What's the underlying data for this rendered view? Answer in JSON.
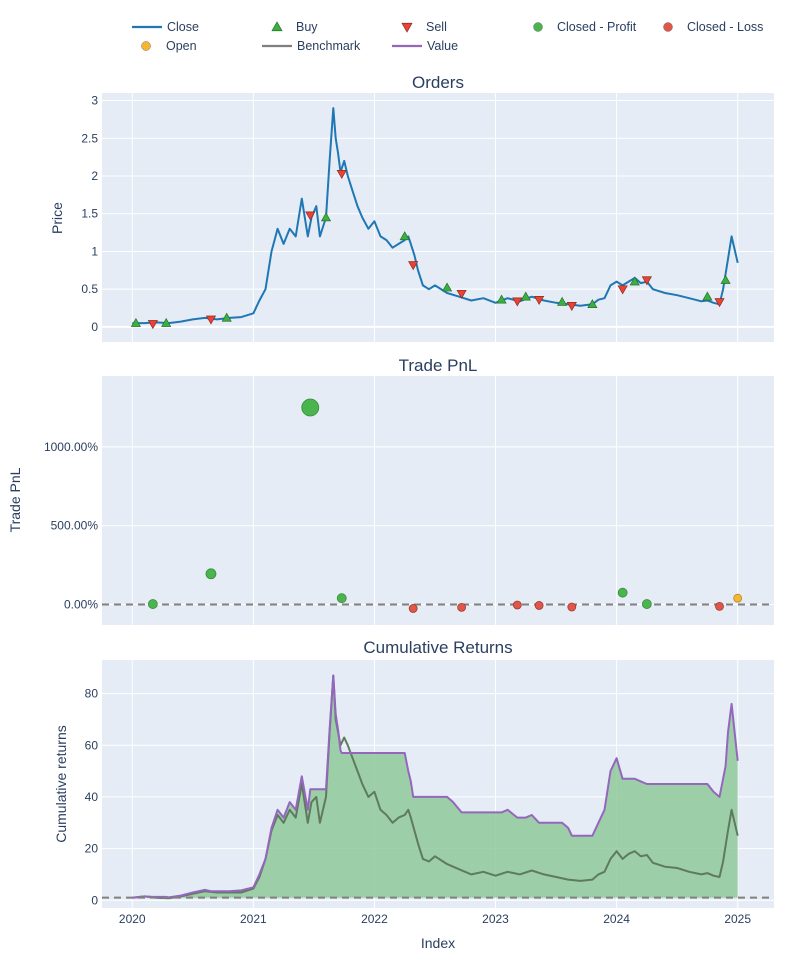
{
  "colors": {
    "close": "#1f77b4",
    "buy": "#37b13f",
    "sell": "#ea4335",
    "profit": "#4ab54e",
    "loss": "#e0574a",
    "open": "#f5b731",
    "benchmark": "#7f7f7f",
    "value": "#9467bd",
    "fill": "#8fc99a",
    "plot_bg": "#e5ecf6",
    "grid": "#ffffff",
    "text": "#2a3f5f"
  },
  "legend": {
    "items": [
      {
        "key": "close",
        "label": "Close",
        "symbol": "line",
        "color": "#1f77b4"
      },
      {
        "key": "buy",
        "label": "Buy",
        "symbol": "triangle-up",
        "color": "#37b13f"
      },
      {
        "key": "sell",
        "label": "Sell",
        "symbol": "triangle-down",
        "color": "#ea4335"
      },
      {
        "key": "profit",
        "label": "Closed - Profit",
        "symbol": "circle",
        "color": "#4ab54e"
      },
      {
        "key": "loss",
        "label": "Closed - Loss",
        "symbol": "circle",
        "color": "#e0574a"
      },
      {
        "key": "open",
        "label": "Open",
        "symbol": "circle",
        "color": "#f5b731"
      },
      {
        "key": "benchmark",
        "label": "Benchmark",
        "symbol": "line",
        "color": "#7f7f7f"
      },
      {
        "key": "value",
        "label": "Value",
        "symbol": "line",
        "color": "#9467bd"
      }
    ]
  },
  "chart_data": [
    {
      "type": "line",
      "title": "Orders",
      "xlabel": "",
      "ylabel": "Price",
      "xlim": [
        2019.75,
        2025.3
      ],
      "ylim": [
        -0.2,
        3.1
      ],
      "yticks": [
        0,
        0.5,
        1,
        1.5,
        2,
        2.5,
        3
      ],
      "ytick_labels": [
        "0",
        "0.5",
        "1",
        "1.5",
        "2",
        "2.5",
        "3"
      ],
      "xticks": [
        2020,
        2021,
        2022,
        2023,
        2024,
        2025
      ],
      "series": [
        {
          "name": "Close",
          "x": [
            2020.0,
            2020.1,
            2020.2,
            2020.3,
            2020.4,
            2020.5,
            2020.6,
            2020.7,
            2020.8,
            2020.9,
            2021.0,
            2021.05,
            2021.1,
            2021.15,
            2021.2,
            2021.25,
            2021.3,
            2021.35,
            2021.4,
            2021.45,
            2021.48,
            2021.52,
            2021.55,
            2021.6,
            2021.63,
            2021.66,
            2021.68,
            2021.7,
            2021.72,
            2021.75,
            2021.78,
            2021.82,
            2021.86,
            2021.9,
            2021.95,
            2022.0,
            2022.05,
            2022.1,
            2022.15,
            2022.2,
            2022.25,
            2022.28,
            2022.3,
            2022.33,
            2022.36,
            2022.4,
            2022.45,
            2022.5,
            2022.6,
            2022.7,
            2022.8,
            2022.9,
            2023.0,
            2023.1,
            2023.2,
            2023.3,
            2023.4,
            2023.5,
            2023.6,
            2023.7,
            2023.8,
            2023.85,
            2023.9,
            2023.95,
            2024.0,
            2024.05,
            2024.1,
            2024.15,
            2024.2,
            2024.25,
            2024.3,
            2024.4,
            2024.5,
            2024.6,
            2024.7,
            2024.75,
            2024.8,
            2024.85,
            2024.88,
            2024.92,
            2024.95,
            2025.0
          ],
          "y": [
            0.05,
            0.05,
            0.06,
            0.05,
            0.07,
            0.1,
            0.12,
            0.1,
            0.12,
            0.13,
            0.18,
            0.35,
            0.5,
            1.0,
            1.3,
            1.1,
            1.3,
            1.2,
            1.7,
            1.2,
            1.45,
            1.6,
            1.2,
            1.45,
            2.2,
            2.9,
            2.5,
            2.3,
            2.05,
            2.2,
            2.0,
            1.8,
            1.6,
            1.45,
            1.3,
            1.4,
            1.2,
            1.15,
            1.05,
            1.1,
            1.15,
            1.2,
            1.1,
            0.95,
            0.75,
            0.55,
            0.5,
            0.55,
            0.45,
            0.4,
            0.35,
            0.38,
            0.32,
            0.38,
            0.34,
            0.4,
            0.35,
            0.32,
            0.3,
            0.28,
            0.3,
            0.36,
            0.38,
            0.55,
            0.6,
            0.55,
            0.6,
            0.65,
            0.58,
            0.6,
            0.5,
            0.45,
            0.42,
            0.38,
            0.34,
            0.35,
            0.32,
            0.3,
            0.5,
            0.9,
            1.2,
            0.85
          ]
        }
      ],
      "buys": {
        "x": [
          2020.03,
          2020.28,
          2020.78,
          2021.6,
          2022.25,
          2022.6,
          2023.05,
          2023.25,
          2023.55,
          2023.8,
          2024.15,
          2024.75,
          2024.9
        ],
        "y": [
          0.05,
          0.05,
          0.12,
          1.45,
          1.2,
          0.52,
          0.36,
          0.4,
          0.33,
          0.3,
          0.6,
          0.4,
          0.62
        ]
      },
      "sells": {
        "x": [
          2020.17,
          2020.65,
          2021.47,
          2021.73,
          2022.32,
          2022.72,
          2023.18,
          2023.36,
          2023.63,
          2024.05,
          2024.25,
          2024.85
        ],
        "y": [
          0.04,
          0.1,
          1.48,
          2.03,
          0.82,
          0.44,
          0.34,
          0.36,
          0.28,
          0.5,
          0.62,
          0.33
        ]
      }
    },
    {
      "type": "scatter",
      "title": "Trade PnL",
      "xlabel": "",
      "ylabel": "Trade PnL",
      "xlim": [
        2019.75,
        2025.3
      ],
      "ylim": [
        -130,
        1450
      ],
      "yticks": [
        0,
        500,
        1000
      ],
      "ytick_labels": [
        "0.00%",
        "500.00%",
        "1000.00%"
      ],
      "xticks": [
        2020,
        2021,
        2022,
        2023,
        2024,
        2025
      ],
      "profit": {
        "x": [
          2020.17,
          2020.65,
          2021.47,
          2021.73,
          2024.05,
          2024.25
        ],
        "y": [
          3,
          195,
          1250,
          40,
          75,
          3
        ]
      },
      "loss": {
        "x": [
          2022.32,
          2022.72,
          2023.18,
          2023.36,
          2023.63,
          2024.85
        ],
        "y": [
          -25,
          -18,
          -3,
          -6,
          -16,
          -12
        ]
      },
      "open": {
        "x": [
          2025.0
        ],
        "y": [
          40
        ]
      },
      "profit_sizes": [
        8,
        9,
        16,
        8,
        8,
        8
      ],
      "reference_line": 0
    },
    {
      "type": "area",
      "title": "Cumulative Returns",
      "xlabel": "Index",
      "ylabel": "Cumulative returns",
      "xlim": [
        2019.75,
        2025.3
      ],
      "ylim": [
        -3,
        93
      ],
      "yticks": [
        0,
        20,
        40,
        60,
        80
      ],
      "ytick_labels": [
        "0",
        "20",
        "40",
        "60",
        "80"
      ],
      "xticks": [
        2020,
        2021,
        2022,
        2023,
        2024,
        2025
      ],
      "xtick_labels": [
        "2020",
        "2021",
        "2022",
        "2023",
        "2024",
        "2025"
      ],
      "series": [
        {
          "name": "Benchmark",
          "x": [
            2020.0,
            2020.1,
            2020.2,
            2020.3,
            2020.4,
            2020.5,
            2020.6,
            2020.7,
            2020.8,
            2020.9,
            2021.0,
            2021.05,
            2021.1,
            2021.15,
            2021.2,
            2021.25,
            2021.3,
            2021.35,
            2021.4,
            2021.45,
            2021.48,
            2021.52,
            2021.55,
            2021.6,
            2021.63,
            2021.66,
            2021.68,
            2021.7,
            2021.72,
            2021.75,
            2021.78,
            2021.82,
            2021.86,
            2021.9,
            2021.95,
            2022.0,
            2022.05,
            2022.1,
            2022.15,
            2022.2,
            2022.25,
            2022.28,
            2022.3,
            2022.33,
            2022.36,
            2022.4,
            2022.45,
            2022.5,
            2022.6,
            2022.7,
            2022.8,
            2022.9,
            2023.0,
            2023.1,
            2023.2,
            2023.3,
            2023.4,
            2023.5,
            2023.6,
            2023.7,
            2023.8,
            2023.85,
            2023.9,
            2023.95,
            2024.0,
            2024.05,
            2024.1,
            2024.15,
            2024.2,
            2024.25,
            2024.3,
            2024.4,
            2024.5,
            2024.6,
            2024.7,
            2024.75,
            2024.8,
            2024.85,
            2024.88,
            2024.92,
            2024.95,
            2025.0
          ],
          "y": [
            1.0,
            1.5,
            1.0,
            0.8,
            1.5,
            2.5,
            3.5,
            3.0,
            3.0,
            3.0,
            4.5,
            9.0,
            16.0,
            27.0,
            33.0,
            30.0,
            35.0,
            32.0,
            45.0,
            30.0,
            38.0,
            40.0,
            30.0,
            40.0,
            65.0,
            87.0,
            70.0,
            65.0,
            60.0,
            63.0,
            60.0,
            55.0,
            50.0,
            45.0,
            40.0,
            42.0,
            35.0,
            33.0,
            30.0,
            32.0,
            33.0,
            35.0,
            32.0,
            27.0,
            22.0,
            16.0,
            15.0,
            17.0,
            14.0,
            12.0,
            10.0,
            11.0,
            9.5,
            11.0,
            10.0,
            11.5,
            10.0,
            9.0,
            8.0,
            7.5,
            8.0,
            10.0,
            11.0,
            16.0,
            19.0,
            16.0,
            18.0,
            19.0,
            17.0,
            17.5,
            14.5,
            13.0,
            12.5,
            11.0,
            10.0,
            10.5,
            9.5,
            9.0,
            15.0,
            27.0,
            35.0,
            25.0
          ]
        },
        {
          "name": "Value",
          "x": [
            2020.0,
            2020.1,
            2020.17,
            2020.2,
            2020.28,
            2020.3,
            2020.4,
            2020.5,
            2020.6,
            2020.65,
            2020.78,
            2020.8,
            2020.9,
            2021.0,
            2021.05,
            2021.1,
            2021.15,
            2021.2,
            2021.25,
            2021.3,
            2021.35,
            2021.4,
            2021.45,
            2021.47,
            2021.6,
            2021.63,
            2021.66,
            2021.68,
            2021.7,
            2021.72,
            2021.73,
            2022.25,
            2022.28,
            2022.3,
            2022.32,
            2022.6,
            2022.65,
            2022.72,
            2023.05,
            2023.1,
            2023.18,
            2023.25,
            2023.3,
            2023.36,
            2023.55,
            2023.6,
            2023.63,
            2023.8,
            2023.85,
            2023.9,
            2023.95,
            2024.0,
            2024.05,
            2024.15,
            2024.2,
            2024.25,
            2024.75,
            2024.8,
            2024.85,
            2024.9,
            2024.92,
            2024.95,
            2025.0
          ],
          "y": [
            1.0,
            1.5,
            1.3,
            1.3,
            1.3,
            1.1,
            1.8,
            3.0,
            4.0,
            3.5,
            3.5,
            3.5,
            3.8,
            5.0,
            10.0,
            16.0,
            28.0,
            35.0,
            32.0,
            38.0,
            35.0,
            48.0,
            35.0,
            43.0,
            43.0,
            66.0,
            87.0,
            72.0,
            66.0,
            58.0,
            57.0,
            57.0,
            50.0,
            46.0,
            40.0,
            40.0,
            38.0,
            34.0,
            34.0,
            35.0,
            32.0,
            32.0,
            33.0,
            30.0,
            30.0,
            28.0,
            25.0,
            25.0,
            30.0,
            35.0,
            50.0,
            55.0,
            47.0,
            47.0,
            46.0,
            45.0,
            45.0,
            42.0,
            40.0,
            52.0,
            65.0,
            76.0,
            54.0
          ]
        }
      ],
      "reference_line": 1
    }
  ]
}
